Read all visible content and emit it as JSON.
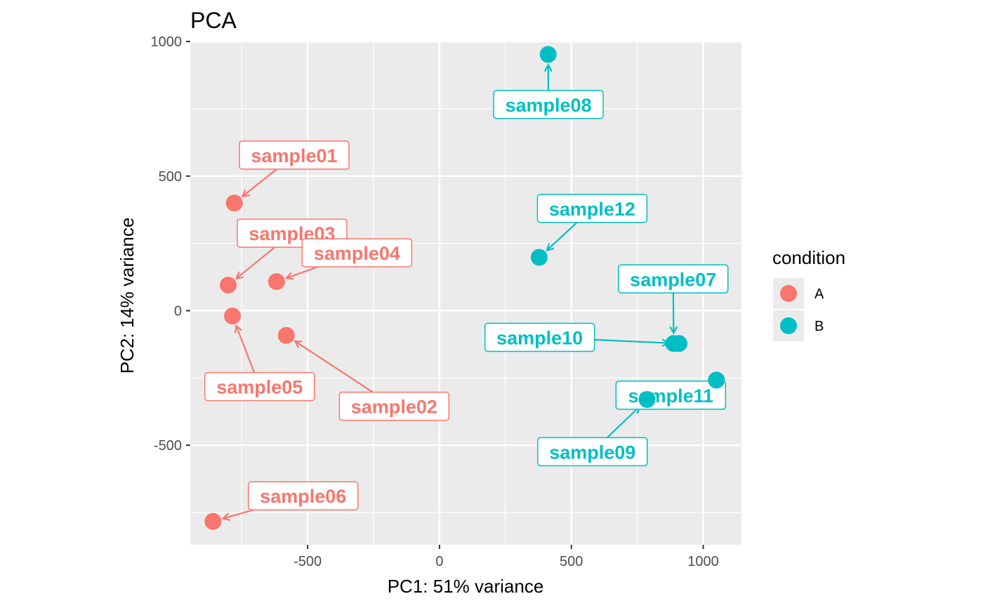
{
  "chart_data": {
    "type": "scatter",
    "title": "PCA",
    "xlabel": "PC1: 51% variance",
    "ylabel": "PC2: 14% variance",
    "xlim": [
      -945,
      1145
    ],
    "ylim": [
      -870,
      1003
    ],
    "x_ticks": [
      -500,
      0,
      500,
      1000
    ],
    "y_ticks": [
      -500,
      0,
      500,
      1000
    ],
    "x_tick_labels": [
      "-500",
      "0",
      "500",
      "1000"
    ],
    "y_tick_labels": [
      "-500",
      "0",
      "500",
      "1000"
    ],
    "grid": true,
    "legend": {
      "title": "condition",
      "position": "right",
      "entries": [
        {
          "name": "A",
          "color": "#F8766D"
        },
        {
          "name": "B",
          "color": "#00BFC4"
        }
      ]
    },
    "series": [
      {
        "name": "A",
        "color": "#F8766D",
        "points": [
          {
            "label": "sample01",
            "x": -778,
            "y": 400,
            "lx": -551,
            "ly": 578
          },
          {
            "label": "sample02",
            "x": -581,
            "y": -92,
            "lx": -172,
            "ly": -355
          },
          {
            "label": "sample03",
            "x": -801,
            "y": 95,
            "lx": -559,
            "ly": 288
          },
          {
            "label": "sample04",
            "x": -618,
            "y": 108,
            "lx": -313,
            "ly": 215
          },
          {
            "label": "sample05",
            "x": -785,
            "y": -20,
            "lx": -682,
            "ly": -282
          },
          {
            "label": "sample06",
            "x": -859,
            "y": -783,
            "lx": -517,
            "ly": -688
          }
        ]
      },
      {
        "name": "B",
        "color": "#00BFC4",
        "points": [
          {
            "label": "sample07",
            "x": 888,
            "y": -122,
            "lx": 886,
            "ly": 118
          },
          {
            "label": "sample08",
            "x": 412,
            "y": 952,
            "lx": 413,
            "ly": 766
          },
          {
            "label": "sample09",
            "x": 787,
            "y": -330,
            "lx": 580,
            "ly": -524
          },
          {
            "label": "sample10",
            "x": 908,
            "y": -122,
            "lx": 380,
            "ly": -99
          },
          {
            "label": "sample11",
            "x": 1050,
            "y": -258,
            "lx": 877,
            "ly": -314
          },
          {
            "label": "sample12",
            "x": 378,
            "y": 198,
            "lx": 579,
            "ly": 380
          }
        ]
      }
    ]
  }
}
